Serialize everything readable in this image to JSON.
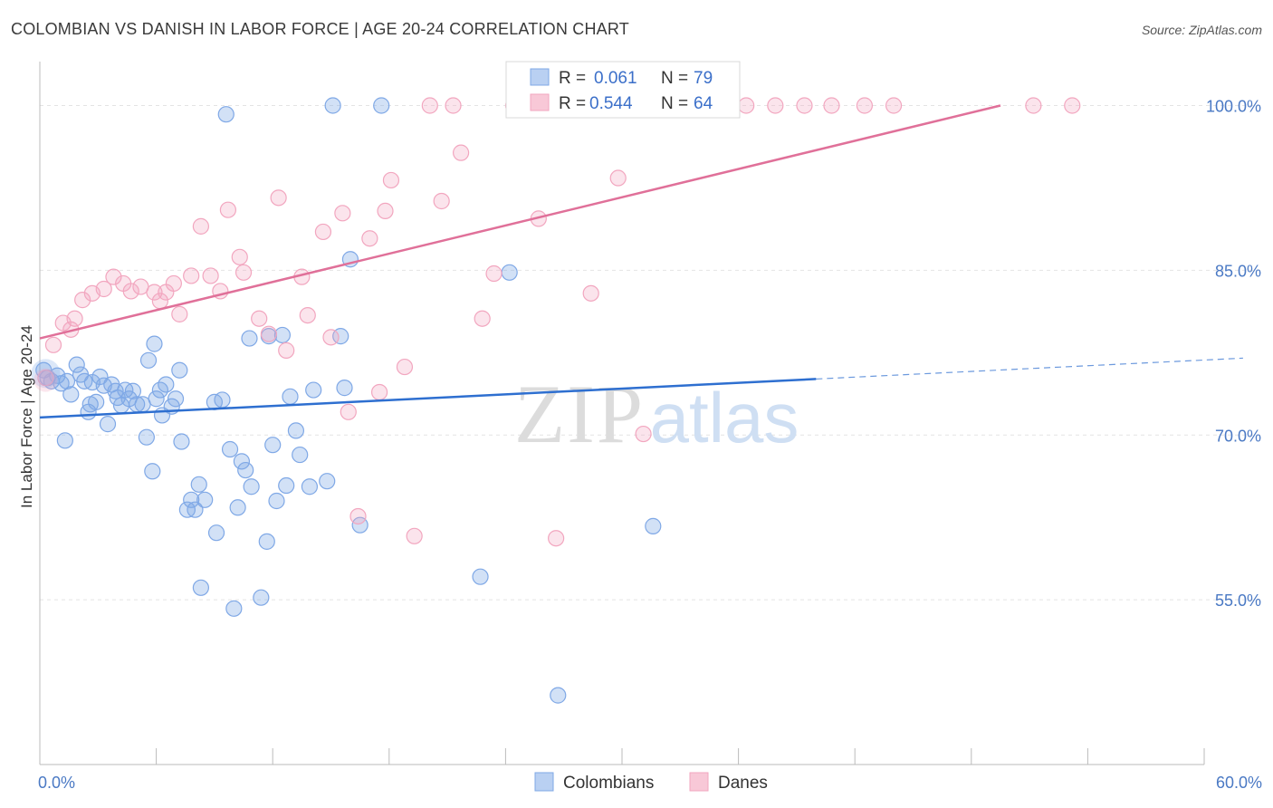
{
  "header": {
    "title": "COLOMBIAN VS DANISH IN LABOR FORCE | AGE 20-24 CORRELATION CHART",
    "source": "Source: ZipAtlas.com"
  },
  "watermark": {
    "zip": "ZIP",
    "atlas": "atlas"
  },
  "chart_data": {
    "type": "scatter",
    "ylabel": "In Labor Force | Age 20-24",
    "xlim": [
      0,
      60
    ],
    "ylim": [
      40,
      104
    ],
    "x_ticks": [
      {
        "value": 0,
        "label": "0.0%"
      },
      {
        "value": 60,
        "label": "60.0%"
      }
    ],
    "y_ticks": [
      {
        "value": 100,
        "label": "100.0%"
      },
      {
        "value": 85,
        "label": "85.0%"
      },
      {
        "value": 70,
        "label": "70.0%"
      },
      {
        "value": 55,
        "label": "55.0%"
      }
    ],
    "grid": true,
    "legend_placement": "top-center",
    "stats": [
      {
        "r_label": "R =",
        "r_value": "0.061",
        "n_label": "N =",
        "n_value": "79"
      },
      {
        "r_label": "R =",
        "r_value": "0.544",
        "n_label": "N =",
        "n_value": "64"
      }
    ],
    "series": [
      {
        "name": "Colombians",
        "color": "#7fa8e6",
        "line_color": "#2e6fd0",
        "trend": {
          "x0": 0,
          "y0": 71.6,
          "x1": 40,
          "y1": 75.1,
          "dash_x1": 62,
          "dash_y1": 77.0
        },
        "points": [
          [
            0.4,
            75.2
          ],
          [
            0.6,
            74.9
          ],
          [
            0.9,
            75.4
          ],
          [
            1.1,
            74.7
          ],
          [
            1.3,
            69.5
          ],
          [
            1.6,
            73.7
          ],
          [
            1.9,
            76.4
          ],
          [
            2.1,
            75.5
          ],
          [
            2.3,
            74.9
          ],
          [
            2.5,
            72.1
          ],
          [
            2.6,
            72.8
          ],
          [
            2.9,
            73.0
          ],
          [
            3.1,
            75.3
          ],
          [
            3.3,
            74.5
          ],
          [
            3.5,
            71.0
          ],
          [
            3.7,
            74.6
          ],
          [
            3.9,
            74.0
          ],
          [
            4.0,
            73.4
          ],
          [
            4.2,
            72.7
          ],
          [
            4.4,
            74.1
          ],
          [
            4.6,
            73.3
          ],
          [
            4.8,
            74.0
          ],
          [
            5.0,
            72.8
          ],
          [
            5.3,
            72.8
          ],
          [
            5.5,
            69.8
          ],
          [
            5.6,
            76.8
          ],
          [
            5.8,
            66.7
          ],
          [
            5.9,
            78.3
          ],
          [
            6.2,
            74.1
          ],
          [
            6.3,
            71.8
          ],
          [
            6.5,
            74.6
          ],
          [
            6.8,
            72.6
          ],
          [
            7.0,
            73.3
          ],
          [
            7.2,
            75.9
          ],
          [
            7.3,
            69.4
          ],
          [
            7.6,
            63.2
          ],
          [
            7.8,
            64.1
          ],
          [
            8.0,
            63.2
          ],
          [
            8.2,
            65.5
          ],
          [
            8.3,
            56.1
          ],
          [
            8.5,
            64.1
          ],
          [
            9.0,
            73.0
          ],
          [
            9.1,
            61.1
          ],
          [
            9.4,
            73.2
          ],
          [
            9.6,
            99.2
          ],
          [
            9.8,
            68.7
          ],
          [
            10.0,
            54.2
          ],
          [
            10.2,
            63.4
          ],
          [
            10.4,
            67.6
          ],
          [
            10.6,
            66.8
          ],
          [
            10.8,
            78.8
          ],
          [
            10.9,
            65.3
          ],
          [
            11.4,
            55.2
          ],
          [
            11.7,
            60.3
          ],
          [
            11.8,
            79.0
          ],
          [
            12.2,
            64.0
          ],
          [
            12.5,
            79.1
          ],
          [
            12.7,
            65.4
          ],
          [
            12.9,
            73.5
          ],
          [
            13.2,
            70.4
          ],
          [
            13.4,
            68.2
          ],
          [
            13.9,
            65.3
          ],
          [
            14.1,
            74.1
          ],
          [
            14.8,
            65.8
          ],
          [
            15.1,
            100.0
          ],
          [
            15.5,
            79.0
          ],
          [
            15.7,
            74.3
          ],
          [
            16.0,
            86.0
          ],
          [
            16.5,
            61.8
          ],
          [
            17.6,
            100.0
          ],
          [
            22.7,
            57.1
          ],
          [
            24.2,
            84.8
          ],
          [
            26.7,
            46.3
          ],
          [
            31.6,
            61.7
          ],
          [
            0.2,
            75.9
          ],
          [
            1.4,
            74.9
          ],
          [
            2.7,
            74.8
          ],
          [
            6.0,
            73.3
          ],
          [
            12.0,
            69.1
          ]
        ]
      },
      {
        "name": "Danes",
        "color": "#f2a6bf",
        "line_color": "#e07099",
        "trend": {
          "x0": 0,
          "y0": 78.8,
          "x1": 49.5,
          "y1": 100.0
        },
        "points": [
          [
            0.3,
            75.2
          ],
          [
            0.7,
            78.2
          ],
          [
            1.2,
            80.2
          ],
          [
            1.8,
            80.6
          ],
          [
            2.2,
            82.3
          ],
          [
            2.7,
            82.9
          ],
          [
            3.3,
            83.3
          ],
          [
            3.8,
            84.4
          ],
          [
            4.3,
            83.8
          ],
          [
            4.7,
            83.1
          ],
          [
            5.2,
            83.5
          ],
          [
            5.9,
            83.0
          ],
          [
            6.2,
            82.2
          ],
          [
            6.9,
            83.8
          ],
          [
            7.2,
            81.0
          ],
          [
            7.8,
            84.5
          ],
          [
            8.3,
            89.0
          ],
          [
            8.8,
            84.5
          ],
          [
            9.3,
            83.1
          ],
          [
            9.7,
            90.5
          ],
          [
            10.3,
            86.2
          ],
          [
            10.5,
            84.8
          ],
          [
            11.3,
            80.6
          ],
          [
            11.8,
            79.2
          ],
          [
            12.3,
            91.6
          ],
          [
            12.7,
            77.7
          ],
          [
            13.5,
            84.4
          ],
          [
            13.8,
            80.9
          ],
          [
            14.6,
            88.5
          ],
          [
            15.0,
            78.9
          ],
          [
            15.6,
            90.2
          ],
          [
            15.9,
            72.1
          ],
          [
            16.4,
            62.6
          ],
          [
            17.0,
            87.9
          ],
          [
            17.5,
            73.9
          ],
          [
            17.8,
            90.4
          ],
          [
            18.1,
            93.2
          ],
          [
            18.8,
            76.2
          ],
          [
            19.3,
            60.8
          ],
          [
            20.1,
            100.0
          ],
          [
            20.7,
            91.3
          ],
          [
            21.3,
            100.0
          ],
          [
            21.7,
            95.7
          ],
          [
            22.8,
            80.6
          ],
          [
            23.4,
            84.7
          ],
          [
            24.4,
            100.0
          ],
          [
            25.7,
            89.7
          ],
          [
            26.6,
            60.6
          ],
          [
            27.5,
            100.0
          ],
          [
            28.4,
            82.9
          ],
          [
            29.8,
            93.4
          ],
          [
            30.2,
            100.0
          ],
          [
            31.1,
            70.1
          ],
          [
            35.2,
            100.0
          ],
          [
            36.4,
            100.0
          ],
          [
            37.9,
            100.0
          ],
          [
            39.4,
            100.0
          ],
          [
            40.8,
            100.0
          ],
          [
            42.5,
            100.0
          ],
          [
            44.0,
            100.0
          ],
          [
            51.2,
            100.0
          ],
          [
            53.2,
            100.0
          ],
          [
            6.5,
            83.0
          ],
          [
            1.6,
            79.6
          ]
        ]
      }
    ]
  }
}
